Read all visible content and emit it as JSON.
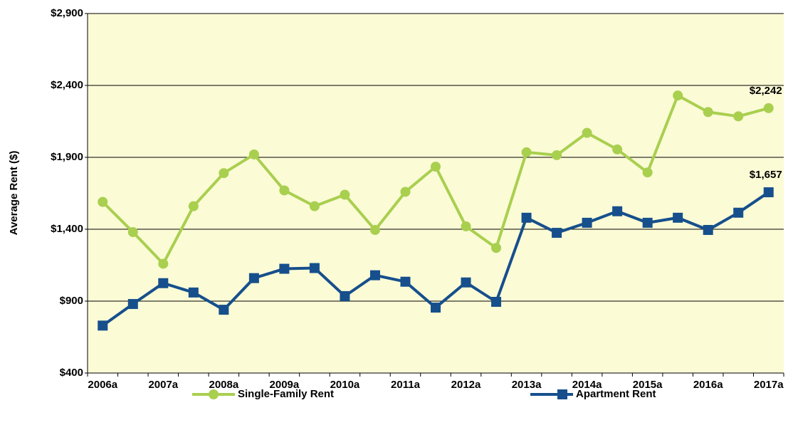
{
  "chart_data": {
    "type": "line",
    "y_axis_label": "Average Rent ($)",
    "categories": [
      "2006a",
      null,
      "2007a",
      null,
      "2008a",
      null,
      "2009a",
      null,
      "2010a",
      null,
      "2011a",
      null,
      "2012a",
      null,
      "2013a",
      null,
      "2014a",
      null,
      "2015a",
      null,
      "2016a",
      null,
      "2017a"
    ],
    "series": [
      {
        "name": "Single-Family Rent",
        "color": "#a9cf4f",
        "marker": "circle",
        "values": [
          1590,
          1380,
          1160,
          1560,
          1790,
          1920,
          1670,
          1560,
          1640,
          1395,
          1660,
          1835,
          1420,
          1270,
          1935,
          1915,
          2070,
          1955,
          1795,
          2330,
          2215,
          2185,
          2242
        ],
        "value_labels": [
          null,
          null,
          null,
          null,
          null,
          null,
          null,
          null,
          null,
          null,
          null,
          null,
          null,
          null,
          null,
          null,
          null,
          null,
          null,
          null,
          null,
          null,
          "$2,242"
        ]
      },
      {
        "name": "Apartment Rent",
        "color": "#164f8c",
        "marker": "square",
        "values": [
          730,
          880,
          1025,
          960,
          840,
          1060,
          1125,
          1130,
          935,
          1080,
          1035,
          855,
          1030,
          895,
          1480,
          1375,
          1445,
          1525,
          1445,
          1480,
          1395,
          1515,
          1657
        ],
        "value_labels": [
          null,
          null,
          null,
          null,
          null,
          null,
          null,
          null,
          null,
          null,
          null,
          null,
          null,
          null,
          null,
          null,
          null,
          null,
          null,
          null,
          null,
          null,
          "$1,657"
        ]
      }
    ],
    "ylim": [
      400,
      2900
    ],
    "yticks": [
      {
        "value": 400,
        "label": "$400"
      },
      {
        "value": 900,
        "label": "$900"
      },
      {
        "value": 1400,
        "label": "$1,400"
      },
      {
        "value": 1900,
        "label": "$1,900"
      },
      {
        "value": 2400,
        "label": "$2,400"
      },
      {
        "value": 2900,
        "label": "$2,900"
      }
    ],
    "grid": true,
    "legend": "bottom"
  }
}
